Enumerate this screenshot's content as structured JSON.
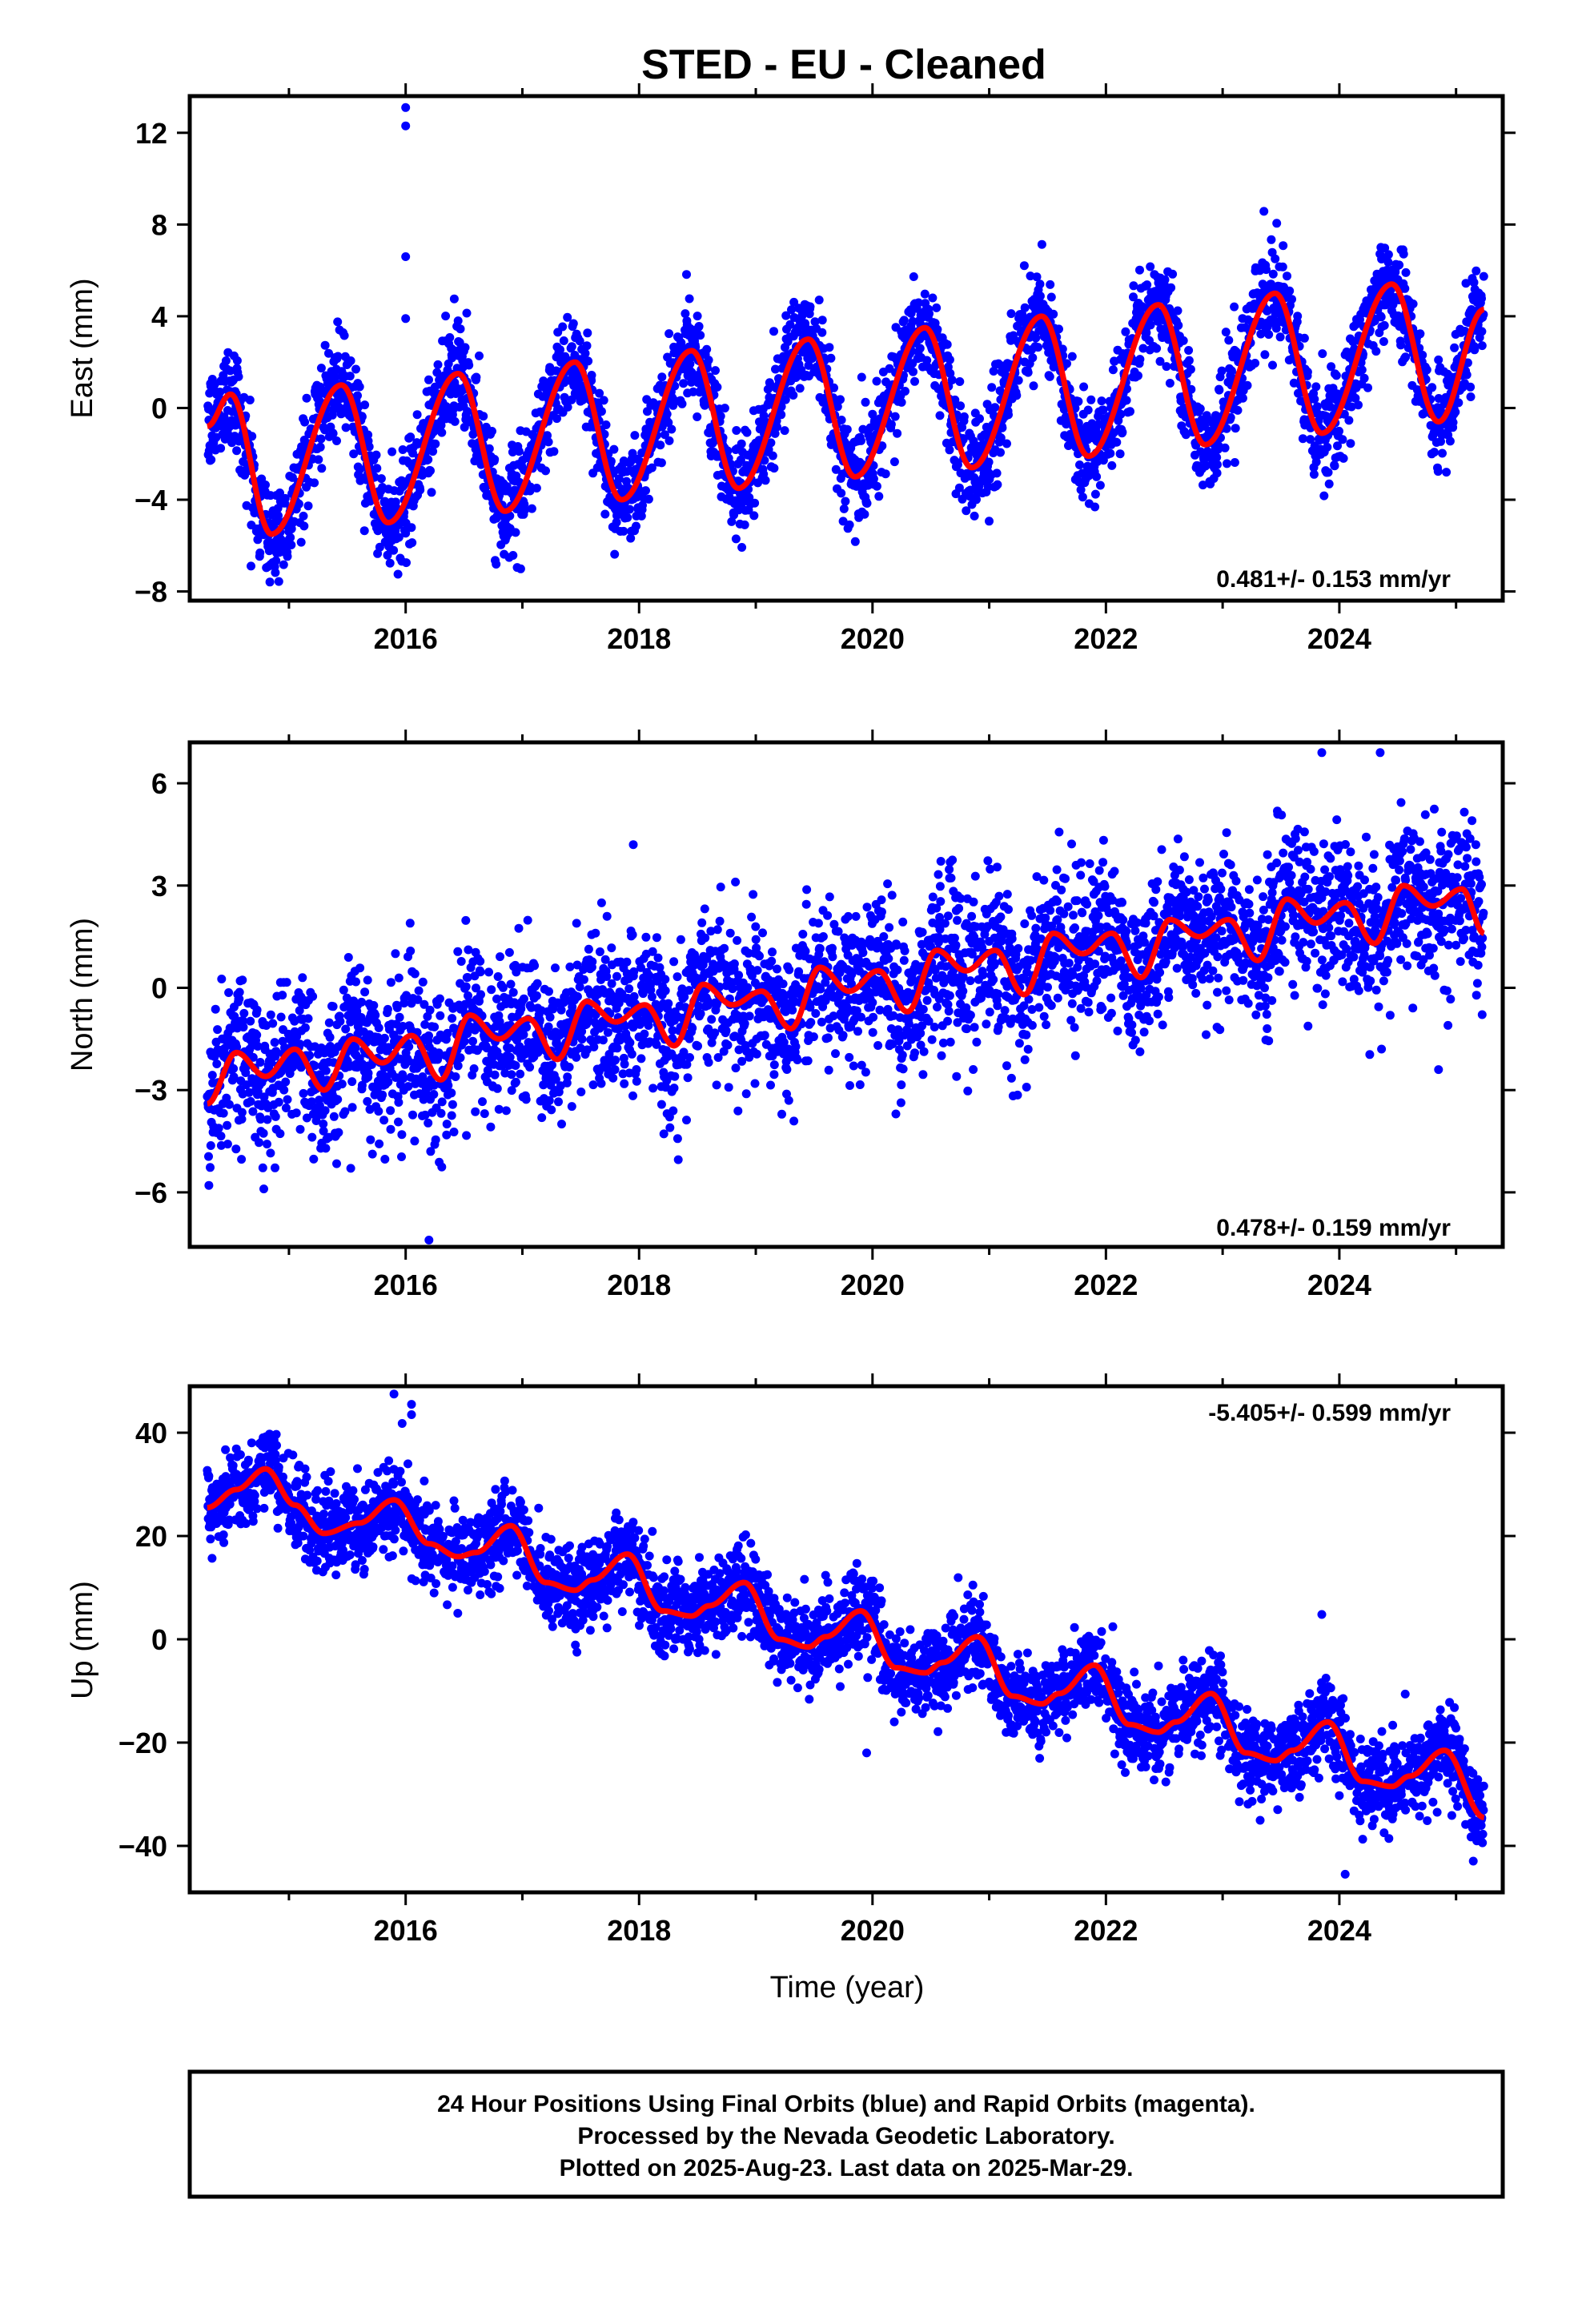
{
  "figure": {
    "title": "STED  - EU - Cleaned",
    "footer_lines": [
      "24 Hour Positions Using Final Orbits (blue) and Rapid Orbits (magenta).",
      "Processed by the Nevada Geodetic Laboratory.",
      "Plotted on 2025-Aug-23. Last data on 2025-Mar-29."
    ],
    "colors": {
      "observations": "#0000ff",
      "model": "#ff0000",
      "frame": "#000000"
    }
  },
  "chart_data": [
    {
      "type": "scatter",
      "panel": "east",
      "ylabel": "East (mm)",
      "xlabel": "",
      "rate_text": "0.481+/- 0.153 mm/yr",
      "rate_mm_per_yr": 0.481,
      "rate_sigma": 0.153,
      "xlim": [
        2014.15,
        2025.4
      ],
      "ylim": [
        -8.4,
        13.6
      ],
      "x_ticks": [
        2016,
        2018,
        2020,
        2022,
        2024
      ],
      "y_ticks": [
        12,
        8,
        4,
        0,
        -4,
        -8
      ],
      "grid": false,
      "series": [
        {
          "kind": "observations",
          "x_range": [
            2014.3,
            2025.24
          ],
          "approx_scatter_mm": 1.1,
          "outliers": [
            {
              "x": 2016.0,
              "y": 13.1
            },
            {
              "x": 2016.0,
              "y": 12.3
            },
            {
              "x": 2016.0,
              "y": 6.6
            },
            {
              "x": 2016.0,
              "y": 3.9
            }
          ]
        },
        {
          "kind": "model",
          "x": [
            2014.3,
            2014.5,
            2014.85,
            2015.45,
            2015.85,
            2016.45,
            2016.85,
            2017.45,
            2017.85,
            2018.45,
            2018.85,
            2019.45,
            2019.85,
            2020.45,
            2020.85,
            2021.45,
            2021.85,
            2022.45,
            2022.85,
            2023.45,
            2023.85,
            2024.45,
            2024.85,
            2025.24
          ],
          "y": [
            -0.8,
            0.6,
            -5.5,
            1.0,
            -5.0,
            1.5,
            -4.5,
            2.0,
            -4.0,
            2.5,
            -3.5,
            3.0,
            -3.0,
            3.5,
            -2.6,
            4.0,
            -2.1,
            4.5,
            -1.6,
            5.0,
            -1.1,
            5.4,
            -0.6,
            4.3
          ]
        }
      ]
    },
    {
      "type": "scatter",
      "panel": "north",
      "ylabel": "North (mm)",
      "xlabel": "",
      "rate_text": "0.478+/- 0.159 mm/yr",
      "rate_mm_per_yr": 0.478,
      "rate_sigma": 0.159,
      "xlim": [
        2014.15,
        2025.4
      ],
      "ylim": [
        -7.6,
        7.2
      ],
      "x_ticks": [
        2016,
        2018,
        2020,
        2022,
        2024
      ],
      "y_ticks": [
        6,
        3,
        0,
        -3,
        -6
      ],
      "grid": false,
      "series": [
        {
          "kind": "observations",
          "x_range": [
            2014.3,
            2025.24
          ],
          "approx_scatter_mm": 1.1,
          "outliers": [
            {
              "x": 2016.2,
              "y": -7.4
            },
            {
              "x": 2017.95,
              "y": 4.2
            },
            {
              "x": 2023.85,
              "y": 6.9
            },
            {
              "x": 2024.35,
              "y": 6.9
            },
            {
              "x": 2024.85,
              "y": -2.4
            },
            {
              "x": 2020.2,
              "y": -3.7
            }
          ]
        },
        {
          "kind": "model",
          "x": [
            2014.3,
            2014.55,
            2014.8,
            2015.05,
            2015.3,
            2015.55,
            2015.8,
            2016.05,
            2016.3,
            2016.55,
            2016.8,
            2017.05,
            2017.3,
            2017.55,
            2017.8,
            2018.05,
            2018.3,
            2018.55,
            2018.8,
            2019.05,
            2019.3,
            2019.55,
            2019.8,
            2020.05,
            2020.3,
            2020.55,
            2020.8,
            2021.05,
            2021.3,
            2021.55,
            2021.8,
            2022.05,
            2022.3,
            2022.55,
            2022.8,
            2023.05,
            2023.3,
            2023.55,
            2023.8,
            2024.05,
            2024.3,
            2024.55,
            2024.8,
            2025.05,
            2025.24
          ],
          "y": [
            -3.4,
            -1.9,
            -2.6,
            -1.8,
            -3.0,
            -1.5,
            -2.2,
            -1.4,
            -2.7,
            -0.8,
            -1.5,
            -0.9,
            -2.1,
            -0.4,
            -1.0,
            -0.5,
            -1.7,
            0.1,
            -0.5,
            -0.1,
            -1.2,
            0.6,
            -0.1,
            0.5,
            -0.7,
            1.1,
            0.5,
            1.1,
            -0.2,
            1.6,
            1.0,
            1.6,
            0.3,
            2.0,
            1.5,
            2.0,
            0.8,
            2.6,
            1.9,
            2.5,
            1.3,
            3.0,
            2.4,
            2.9,
            1.6
          ]
        }
      ]
    },
    {
      "type": "scatter",
      "panel": "up",
      "ylabel": "Up (mm)",
      "xlabel": "Time (year)",
      "rate_text": "-5.405+/- 0.599 mm/yr",
      "rate_mm_per_yr": -5.405,
      "rate_sigma": 0.599,
      "xlim": [
        2014.15,
        2025.4
      ],
      "ylim": [
        -49,
        49
      ],
      "x_ticks": [
        2016,
        2018,
        2020,
        2022,
        2024
      ],
      "y_ticks": [
        40,
        20,
        0,
        -20,
        -40
      ],
      "grid": false,
      "series": [
        {
          "kind": "observations",
          "x_range": [
            2014.3,
            2025.24
          ],
          "approx_scatter_mm": 4.2,
          "outliers": [
            {
              "x": 2015.9,
              "y": 47.5
            },
            {
              "x": 2016.05,
              "y": 45.5
            },
            {
              "x": 2016.05,
              "y": 43.5
            },
            {
              "x": 2023.85,
              "y": 4.8
            },
            {
              "x": 2024.05,
              "y": -45.5
            },
            {
              "x": 2019.95,
              "y": -22
            }
          ]
        },
        {
          "kind": "model",
          "x": [
            2014.3,
            2014.55,
            2014.8,
            2015.05,
            2015.3,
            2015.6,
            2015.9,
            2016.2,
            2016.45,
            2016.6,
            2016.9,
            2017.2,
            2017.45,
            2017.6,
            2017.9,
            2018.2,
            2018.45,
            2018.6,
            2018.9,
            2019.2,
            2019.45,
            2019.6,
            2019.9,
            2020.2,
            2020.45,
            2020.6,
            2020.9,
            2021.2,
            2021.45,
            2021.6,
            2021.9,
            2022.2,
            2022.45,
            2022.6,
            2022.9,
            2023.2,
            2023.45,
            2023.6,
            2023.9,
            2024.2,
            2024.45,
            2024.6,
            2024.9,
            2025.24
          ],
          "y": [
            25.5,
            29,
            33,
            26,
            20.5,
            22.5,
            27,
            18.5,
            16,
            16.8,
            22,
            11,
            9.5,
            11.5,
            16.5,
            5.5,
            4.5,
            6.5,
            11,
            0,
            -1.5,
            0.5,
            5.5,
            -5.5,
            -6.5,
            -4.5,
            0.5,
            -11,
            -12.5,
            -10.5,
            -5,
            -16.5,
            -18,
            -16,
            -10.5,
            -22,
            -23.5,
            -21.5,
            -16,
            -27.5,
            -28.5,
            -26.5,
            -21.5,
            -34.5
          ]
        }
      ]
    }
  ]
}
